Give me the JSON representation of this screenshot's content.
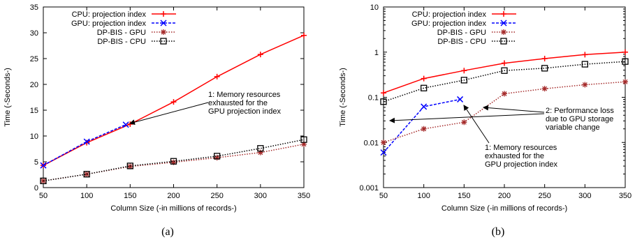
{
  "chart_data": [
    {
      "id": "a",
      "type": "line",
      "caption": "(a)",
      "xlabel": "Column Size (-in millions of records-)",
      "ylabel": "Time (-Seconds-)",
      "xlim": [
        50,
        350
      ],
      "ylim": [
        0,
        35
      ],
      "yscale": "linear",
      "xticks": [
        50,
        100,
        150,
        200,
        250,
        300,
        350
      ],
      "yticks": [
        0,
        5,
        10,
        15,
        20,
        25,
        30,
        35
      ],
      "legend_position": "top-left",
      "series": [
        {
          "name": "CPU: projection index",
          "color": "#ff0000",
          "dash": "solid",
          "marker": "plus",
          "x": [
            50,
            100,
            150,
            200,
            250,
            300,
            350
          ],
          "y": [
            4.3,
            8.7,
            12.3,
            16.6,
            21.5,
            25.8,
            29.5
          ]
        },
        {
          "name": "GPU: projection index",
          "color": "#0000ff",
          "dash": "dashed",
          "marker": "x",
          "x": [
            50,
            100,
            145
          ],
          "y": [
            4.3,
            8.9,
            12.2
          ]
        },
        {
          "name": "DP-BIS - GPU",
          "color": "#a52a2a",
          "dash": "dotted",
          "marker": "star",
          "x": [
            50,
            100,
            150,
            200,
            250,
            300,
            350
          ],
          "y": [
            1.3,
            2.6,
            4.1,
            4.9,
            5.8,
            6.8,
            8.4
          ]
        },
        {
          "name": "DP-BIS - CPU",
          "color": "#000000",
          "dash": "dotted",
          "marker": "square",
          "x": [
            50,
            100,
            150,
            200,
            250,
            300,
            350
          ],
          "y": [
            1.3,
            2.6,
            4.2,
            5.1,
            6.1,
            7.6,
            9.3
          ]
        }
      ],
      "annotations": [
        {
          "lines": [
            "1: Memory resources",
            "exhausted for the",
            "GPU projection index"
          ],
          "arrow_to": {
            "x": 150,
            "y": 12.3
          }
        }
      ]
    },
    {
      "id": "b",
      "type": "line",
      "caption": "(b)",
      "xlabel": "Column Size (-in millions of records-)",
      "ylabel": "Time (-Seconds-)",
      "xlim": [
        50,
        350
      ],
      "ylim": [
        0.001,
        10
      ],
      "yscale": "log",
      "xticks": [
        50,
        100,
        150,
        200,
        250,
        300,
        350
      ],
      "yticks": [
        0.001,
        0.01,
        0.1,
        1,
        10
      ],
      "ytick_labels": [
        "0.001",
        "0.01",
        "0.1",
        "1",
        "10"
      ],
      "legend_position": "top-left",
      "series": [
        {
          "name": "CPU: projection index",
          "color": "#ff0000",
          "dash": "solid",
          "marker": "plus",
          "x": [
            50,
            100,
            150,
            200,
            250,
            300,
            350
          ],
          "y": [
            0.125,
            0.26,
            0.39,
            0.57,
            0.72,
            0.88,
            1.0
          ]
        },
        {
          "name": "GPU: projection index",
          "color": "#0000ff",
          "dash": "dashed",
          "marker": "x",
          "x": [
            50,
            100,
            145
          ],
          "y": [
            0.006,
            0.062,
            0.09
          ]
        },
        {
          "name": "DP-BIS - GPU",
          "color": "#a52a2a",
          "dash": "dotted",
          "marker": "star",
          "x": [
            50,
            100,
            150,
            200,
            250,
            300,
            350
          ],
          "y": [
            0.01,
            0.02,
            0.028,
            0.12,
            0.155,
            0.19,
            0.22
          ]
        },
        {
          "name": "DP-BIS - CPU",
          "color": "#000000",
          "dash": "dotted",
          "marker": "square",
          "x": [
            50,
            100,
            150,
            200,
            250,
            300,
            350
          ],
          "y": [
            0.08,
            0.16,
            0.24,
            0.39,
            0.44,
            0.54,
            0.62
          ]
        }
      ],
      "annotations": [
        {
          "lines": [
            "2: Performance loss",
            "due to GPU storage",
            "variable change"
          ],
          "arrow_to": [
            {
              "x": 150,
              "y": 0.028
            },
            {
              "x": 50,
              "y": 0.014
            }
          ]
        },
        {
          "lines": [
            "1: Memory resources",
            "exhausted for the",
            "GPU projection index"
          ],
          "arrow_to": {
            "x": 145,
            "y": 0.09
          }
        }
      ]
    }
  ]
}
